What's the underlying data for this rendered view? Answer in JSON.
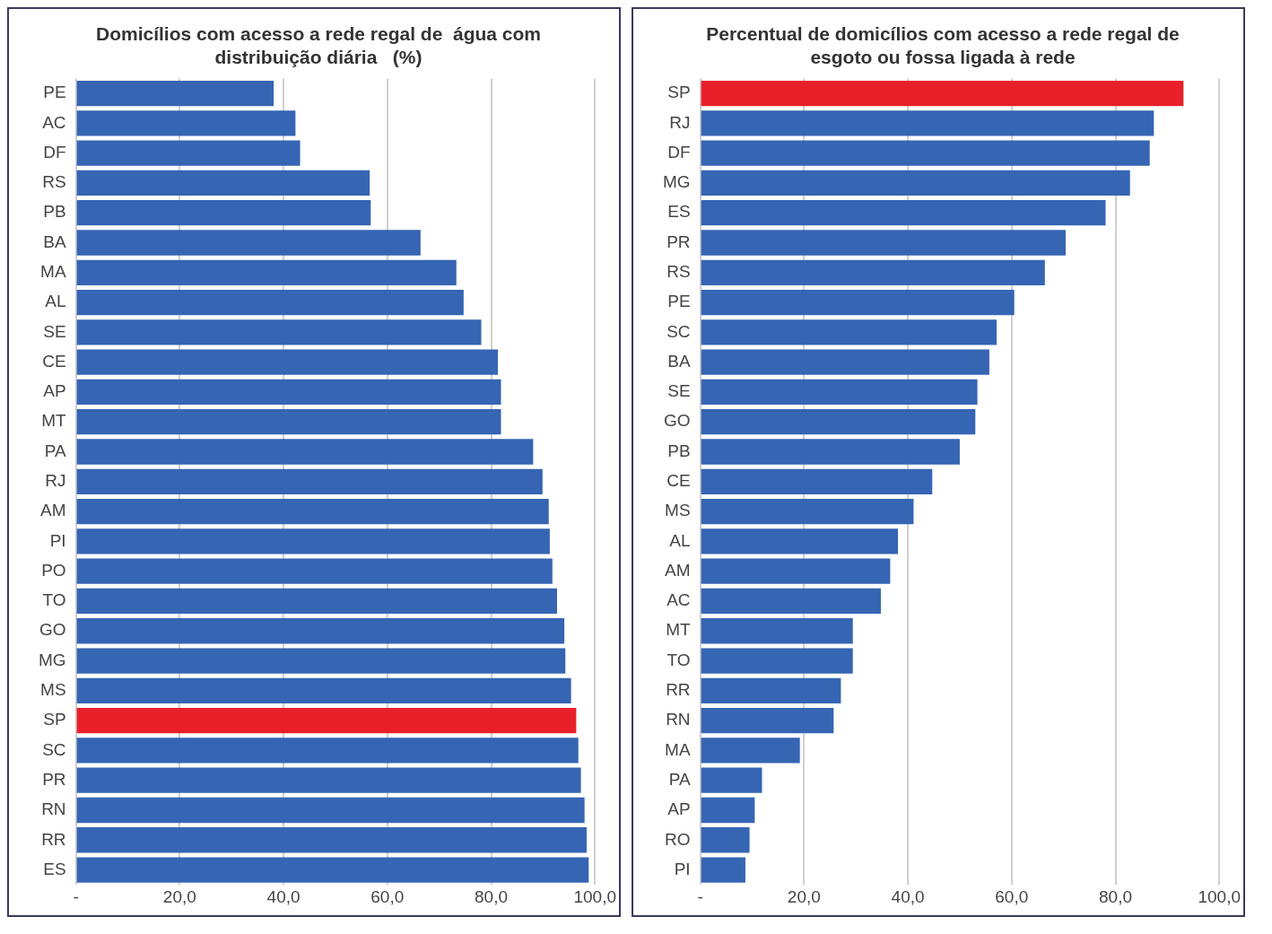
{
  "chart_data": [
    {
      "type": "bar",
      "orientation": "horizontal",
      "title": "Domicílios com acesso a rede regal de  água com distribuição diária   (%)",
      "categories": [
        "PE",
        "AC",
        "DF",
        "RS",
        "PB",
        "BA",
        "MA",
        "AL",
        "SE",
        "CE",
        "AP",
        "MT",
        "PA",
        "RJ",
        "AM",
        "PI",
        "PO",
        "TO",
        "GO",
        "MG",
        "MS",
        "SP",
        "SC",
        "PR",
        "RN",
        "RR",
        "ES"
      ],
      "values": [
        38.1,
        42.3,
        43.2,
        56.6,
        56.8,
        66.4,
        73.3,
        74.7,
        78.1,
        81.3,
        81.9,
        81.9,
        88.1,
        89.9,
        91.1,
        91.3,
        91.8,
        92.7,
        94.1,
        94.3,
        95.4,
        96.4,
        96.8,
        97.3,
        98.0,
        98.4,
        98.8
      ],
      "colors": [
        "#3565b3",
        "#3565b3",
        "#3565b3",
        "#3565b3",
        "#3565b3",
        "#3565b3",
        "#3565b3",
        "#3565b3",
        "#3565b3",
        "#3565b3",
        "#3565b3",
        "#3565b3",
        "#3565b3",
        "#3565b3",
        "#3565b3",
        "#3565b3",
        "#3565b3",
        "#3565b3",
        "#3565b3",
        "#3565b3",
        "#3565b3",
        "#e8202a",
        "#3565b3",
        "#3565b3",
        "#3565b3",
        "#3565b3",
        "#3565b3"
      ],
      "xlim": [
        0,
        100
      ],
      "xticks": [
        {
          "value": 0,
          "label": "-"
        },
        {
          "value": 20,
          "label": "20,0"
        },
        {
          "value": 40,
          "label": "40,0"
        },
        {
          "value": 60,
          "label": "60,0"
        },
        {
          "value": 80,
          "label": "80,0"
        },
        {
          "value": 100,
          "label": "100,0"
        }
      ],
      "grid": "x",
      "legend": false
    },
    {
      "type": "bar",
      "orientation": "horizontal",
      "title": "Percentual de domicílios com acesso a rede regal de esgoto ou fossa ligada à rede",
      "categories": [
        "SP",
        "RJ",
        "DF",
        "MG",
        "ES",
        "PR",
        "RS",
        "PE",
        "SC",
        "BA",
        "SE",
        "GO",
        "PB",
        "CE",
        "MS",
        "AL",
        "AM",
        "AC",
        "MT",
        "TO",
        "RR",
        "RN",
        "MA",
        "PA",
        "AP",
        "RO",
        "PI"
      ],
      "values": [
        93.1,
        87.4,
        86.6,
        82.8,
        78.1,
        70.4,
        66.4,
        60.5,
        57.1,
        55.7,
        53.4,
        53.0,
        50.0,
        44.7,
        41.1,
        38.1,
        36.6,
        34.8,
        29.4,
        29.4,
        27.1,
        25.7,
        19.2,
        11.9,
        10.5,
        9.5,
        8.7
      ],
      "colors": [
        "#e8202a",
        "#3565b3",
        "#3565b3",
        "#3565b3",
        "#3565b3",
        "#3565b3",
        "#3565b3",
        "#3565b3",
        "#3565b3",
        "#3565b3",
        "#3565b3",
        "#3565b3",
        "#3565b3",
        "#3565b3",
        "#3565b3",
        "#3565b3",
        "#3565b3",
        "#3565b3",
        "#3565b3",
        "#3565b3",
        "#3565b3",
        "#3565b3",
        "#3565b3",
        "#3565b3",
        "#3565b3",
        "#3565b3",
        "#3565b3"
      ],
      "xlim": [
        0,
        100
      ],
      "xticks": [
        {
          "value": 0,
          "label": "-"
        },
        {
          "value": 20,
          "label": "20,0"
        },
        {
          "value": 40,
          "label": "40,0"
        },
        {
          "value": 60,
          "label": "60,0"
        },
        {
          "value": 80,
          "label": "80,0"
        },
        {
          "value": 100,
          "label": "100,0"
        }
      ],
      "grid": "x",
      "legend": false
    }
  ]
}
